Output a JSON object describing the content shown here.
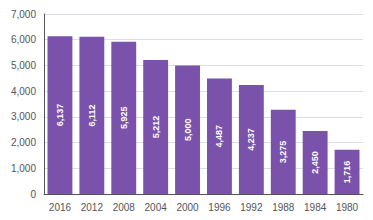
{
  "chart_data": {
    "type": "bar",
    "categories": [
      "2016",
      "2012",
      "2008",
      "2004",
      "2000",
      "1996",
      "1992",
      "1988",
      "1984",
      "1980"
    ],
    "values": [
      6137,
      6112,
      5925,
      5212,
      5000,
      4487,
      4237,
      3275,
      2450,
      1716
    ],
    "value_labels": [
      "6,137",
      "6,112",
      "5,925",
      "5,212",
      "5,000",
      "4,487",
      "4,237",
      "3,275",
      "2,450",
      "1,716"
    ],
    "data_labels": true,
    "color": "#7B52AB",
    "ylim": [
      0,
      7000
    ],
    "yticks": [
      0,
      {
        "value": 1000,
        "label": "1,000"
      },
      {
        "value": 2000,
        "label": "2,000"
      },
      {
        "value": 3000,
        "label": "3,000"
      },
      {
        "value": 4000,
        "label": "4,000"
      },
      {
        "value": 5000,
        "label": "5,000"
      },
      {
        "value": 6000,
        "label": "6,000"
      },
      {
        "value": 7000,
        "label": "7,000"
      }
    ],
    "grid": true
  }
}
